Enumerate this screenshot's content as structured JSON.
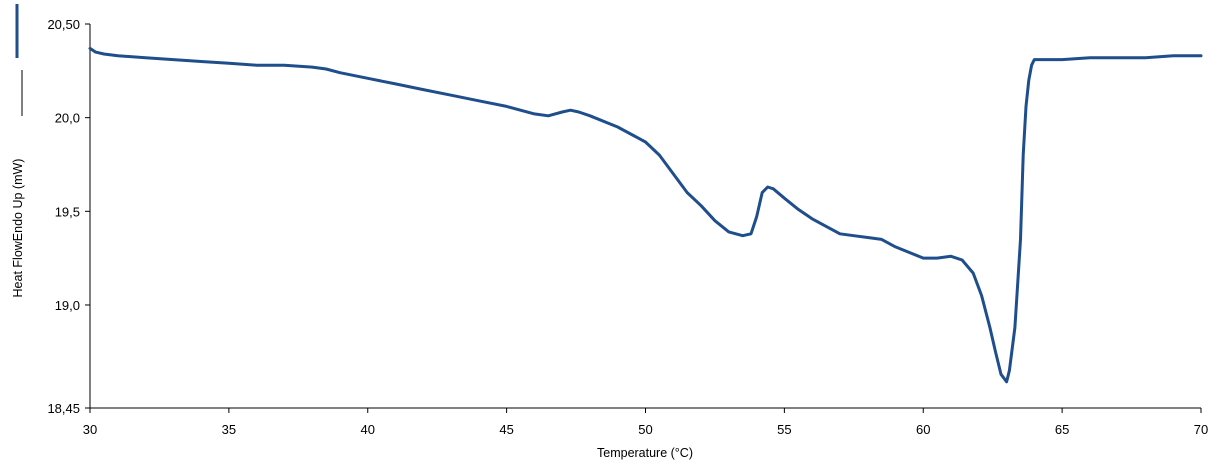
{
  "chart_data": {
    "type": "line",
    "title": "",
    "xlabel": "Temperature (°C)",
    "ylabel": "Heat FlowEndo Up (mW)",
    "xlim": [
      30,
      70
    ],
    "ylim": [
      18.45,
      20.5
    ],
    "grid": false,
    "series_color": "#1f4e8c",
    "x_ticks": [
      {
        "value": 30,
        "label": "30"
      },
      {
        "value": 35,
        "label": "35"
      },
      {
        "value": 40,
        "label": "40"
      },
      {
        "value": 45,
        "label": "45"
      },
      {
        "value": 50,
        "label": "50"
      },
      {
        "value": 55,
        "label": "55"
      },
      {
        "value": 60,
        "label": "60"
      },
      {
        "value": 65,
        "label": "65"
      },
      {
        "value": 70,
        "label": "70"
      }
    ],
    "y_ticks": [
      {
        "value": 20.5,
        "label": "20,50"
      },
      {
        "value": 20.0,
        "label": "20,0"
      },
      {
        "value": 19.5,
        "label": "19,5"
      },
      {
        "value": 19.0,
        "label": "19,0"
      },
      {
        "value": 18.45,
        "label": "18,45"
      }
    ],
    "series": [
      {
        "x": [
          30.0,
          30.2,
          30.5,
          31.0,
          32.0,
          33.0,
          34.0,
          35.0,
          36.0,
          37.0,
          38.0,
          38.5,
          39.0,
          40.0,
          41.0,
          42.0,
          43.0,
          44.0,
          45.0,
          46.0,
          46.5,
          47.0,
          47.3,
          47.6,
          48.0,
          49.0,
          50.0,
          50.5,
          51.0,
          51.5,
          52.0,
          52.5,
          53.0,
          53.5,
          53.8,
          54.0,
          54.2,
          54.4,
          54.6,
          55.0,
          55.5,
          56.0,
          56.5,
          57.0,
          57.5,
          58.0,
          58.5,
          59.0,
          59.5,
          60.0,
          60.5,
          61.0,
          61.4,
          61.8,
          62.1,
          62.4,
          62.6,
          62.8,
          62.95,
          63.0,
          63.1,
          63.3,
          63.5,
          63.6,
          63.7,
          63.8,
          63.9,
          64.0,
          64.2,
          64.5,
          65.0,
          66.0,
          67.0,
          68.0,
          69.0,
          70.0
        ],
        "y": [
          20.37,
          20.35,
          20.34,
          20.33,
          20.32,
          20.31,
          20.3,
          20.29,
          20.28,
          20.28,
          20.27,
          20.26,
          20.24,
          20.21,
          20.18,
          20.15,
          20.12,
          20.09,
          20.06,
          20.02,
          20.01,
          20.03,
          20.04,
          20.03,
          20.01,
          19.95,
          19.87,
          19.8,
          19.7,
          19.6,
          19.53,
          19.45,
          19.39,
          19.37,
          19.38,
          19.47,
          19.6,
          19.63,
          19.62,
          19.57,
          19.51,
          19.46,
          19.42,
          19.38,
          19.37,
          19.36,
          19.35,
          19.31,
          19.28,
          19.25,
          19.25,
          19.26,
          19.24,
          19.17,
          19.05,
          18.88,
          18.75,
          18.63,
          18.6,
          18.59,
          18.65,
          18.88,
          19.35,
          19.8,
          20.06,
          20.2,
          20.28,
          20.31,
          20.31,
          20.31,
          20.31,
          20.32,
          20.32,
          20.32,
          20.33,
          20.33
        ]
      }
    ]
  }
}
